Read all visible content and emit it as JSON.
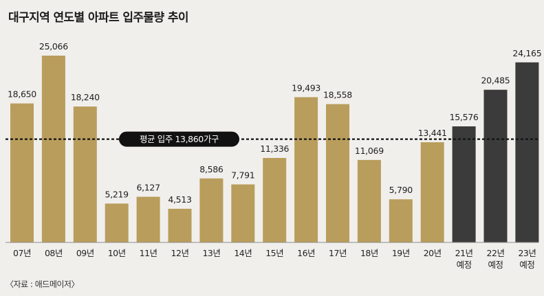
{
  "title": "대구지역 연도별 아파트 입주물량 추이",
  "source": "〈자료 : 애드메이저〉",
  "colors": {
    "background": "#f1efec",
    "bar_actual": "#b99d5c",
    "bar_forecast": "#3b3b3b",
    "average_line": "#111111",
    "average_label_bg": "#111111",
    "average_label_text": "#ffffff"
  },
  "chart_data": {
    "type": "bar",
    "title": "대구지역 연도별 아파트 입주물량 추이",
    "xlabel": "",
    "ylabel": "",
    "categories": [
      "07년",
      "08년",
      "09년",
      "10년",
      "11년",
      "12년",
      "13년",
      "14년",
      "15년",
      "16년",
      "17년",
      "18년",
      "19년",
      "20년",
      "21년",
      "22년",
      "23년"
    ],
    "category_sublabels": [
      "",
      "",
      "",
      "",
      "",
      "",
      "",
      "",
      "",
      "",
      "",
      "",
      "",
      "",
      "예정",
      "예정",
      "예정"
    ],
    "values": [
      18650,
      25066,
      18240,
      5219,
      6127,
      4513,
      8586,
      7791,
      11336,
      19493,
      18558,
      11069,
      5790,
      13441,
      15576,
      20485,
      24165
    ],
    "value_labels": [
      "18,650",
      "25,066",
      "18,240",
      "5,219",
      "6,127",
      "4,513",
      "8,586",
      "7,791",
      "11,336",
      "19,493",
      "18,558",
      "11,069",
      "5,790",
      "13,441",
      "15,576",
      "20,485",
      "24,165"
    ],
    "forecast": [
      false,
      false,
      false,
      false,
      false,
      false,
      false,
      false,
      false,
      false,
      false,
      false,
      false,
      false,
      true,
      true,
      true
    ],
    "ylim": [
      0,
      27000
    ],
    "grid": false,
    "average": {
      "value": 13860,
      "label": "평균 입주 13,860가구"
    }
  }
}
